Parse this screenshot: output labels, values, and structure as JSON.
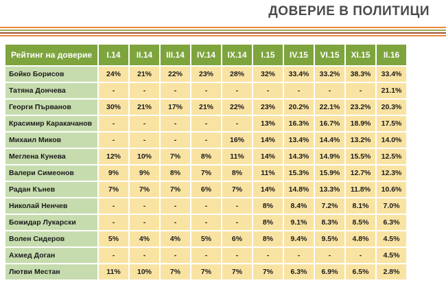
{
  "page_title": "ДОВЕРИЕ В ПОЛИТИЦИ",
  "colors": {
    "header_bg": "#7ea43e",
    "name_bg": "#c7dcae",
    "value_bg": "#f9e3a3",
    "stripe_orange": "#e8873a",
    "stripe_olive": "#9aa84e",
    "stripe_brown": "#a0522d"
  },
  "chart_data": {
    "type": "table",
    "title": "ДОВЕРИЕ В ПОЛИТИЦИ",
    "corner_label": "Рейтинг на доверие",
    "columns": [
      "I.14",
      "II.14",
      "III.14",
      "IV.14",
      "IX.14",
      "I.15",
      "IV.15",
      "VI.15",
      "XI.15",
      "II.16"
    ],
    "rows": [
      {
        "name": "Бойко Борисов",
        "values": [
          "24%",
          "21%",
          "22%",
          "23%",
          "28%",
          "32%",
          "33.4%",
          "33.2%",
          "38.3%",
          "33.4%"
        ]
      },
      {
        "name": "Татяна Дончева",
        "values": [
          "-",
          "-",
          "-",
          "-",
          "-",
          "-",
          "-",
          "-",
          "-",
          "21.1%"
        ]
      },
      {
        "name": "Георги Първанов",
        "values": [
          "30%",
          "21%",
          "17%",
          "21%",
          "22%",
          "23%",
          "20.2%",
          "22.1%",
          "23.2%",
          "20.3%"
        ]
      },
      {
        "name": "Красимир Каракачанов",
        "values": [
          "-",
          "-",
          "-",
          "-",
          "-",
          "13%",
          "16.3%",
          "16.7%",
          "18.9%",
          "17.5%"
        ]
      },
      {
        "name": "Михаил Миков",
        "values": [
          "-",
          "-",
          "-",
          "-",
          "16%",
          "14%",
          "13.4%",
          "14.4%",
          "13.2%",
          "14.0%"
        ]
      },
      {
        "name": "Меглена Кунева",
        "values": [
          "12%",
          "10%",
          "7%",
          "8%",
          "11%",
          "14%",
          "14.3%",
          "14.9%",
          "15.5%",
          "12.5%"
        ]
      },
      {
        "name": "Валери Симеонов",
        "values": [
          "9%",
          "9%",
          "8%",
          "7%",
          "8%",
          "11%",
          "15.3%",
          "15.9%",
          "12.7%",
          "12.3%"
        ]
      },
      {
        "name": "Радан Кънев",
        "values": [
          "7%",
          "7%",
          "7%",
          "6%",
          "7%",
          "14%",
          "14.8%",
          "13.3%",
          "11.8%",
          "10.6%"
        ]
      },
      {
        "name": "Николай Ненчев",
        "values": [
          "-",
          "-",
          "-",
          "-",
          "-",
          "8%",
          "8.4%",
          "7.2%",
          "8.1%",
          "7.0%"
        ]
      },
      {
        "name": "Божидар Лукарски",
        "values": [
          "-",
          "-",
          "-",
          "-",
          "-",
          "8%",
          "9.1%",
          "8.3%",
          "8.5%",
          "6.3%"
        ]
      },
      {
        "name": "Волен Сидеров",
        "values": [
          "5%",
          "4%",
          "4%",
          "5%",
          "6%",
          "8%",
          "9.4%",
          "9.5%",
          "4.8%",
          "4.5%"
        ]
      },
      {
        "name": "Ахмед Доган",
        "values": [
          "-",
          "-",
          "-",
          "-",
          "-",
          "-",
          "-",
          "-",
          "-",
          "4.5%"
        ]
      },
      {
        "name": "Лютви Местан",
        "values": [
          "11%",
          "10%",
          "7%",
          "7%",
          "7%",
          "7%",
          "6.3%",
          "6.9%",
          "6.5%",
          "2.8%"
        ]
      }
    ]
  }
}
